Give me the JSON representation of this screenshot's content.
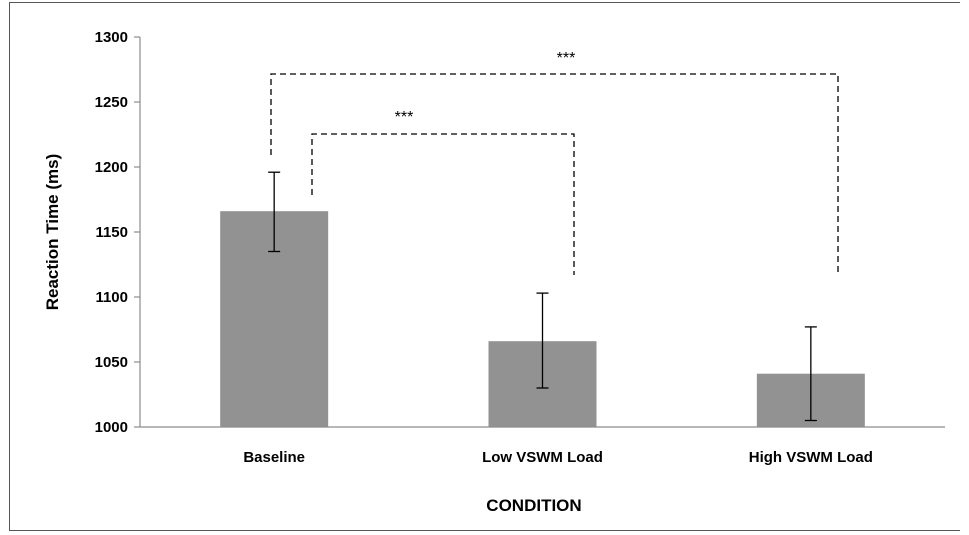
{
  "chart_data": {
    "type": "bar",
    "categories": [
      "Baseline",
      "Low VSWM Load",
      "High VSWM Load"
    ],
    "values": [
      1166,
      1066,
      1041
    ],
    "error_bars": [
      {
        "lower": 1135,
        "upper": 1196
      },
      {
        "lower": 1030,
        "upper": 1103
      },
      {
        "lower": 1005,
        "upper": 1077
      }
    ],
    "title": "",
    "xlabel": "CONDITION",
    "ylabel": "Reaction Time (ms)",
    "ylim": [
      1000,
      1300
    ],
    "yticks": [
      1000,
      1050,
      1100,
      1150,
      1200,
      1250,
      1300
    ],
    "grid": false,
    "legend": "none",
    "bar_color": "#929292",
    "significance": [
      {
        "from": "Baseline",
        "to": "Low VSWM Load",
        "label": "***"
      },
      {
        "from": "Baseline",
        "to": "High VSWM Load",
        "label": "***"
      }
    ]
  }
}
